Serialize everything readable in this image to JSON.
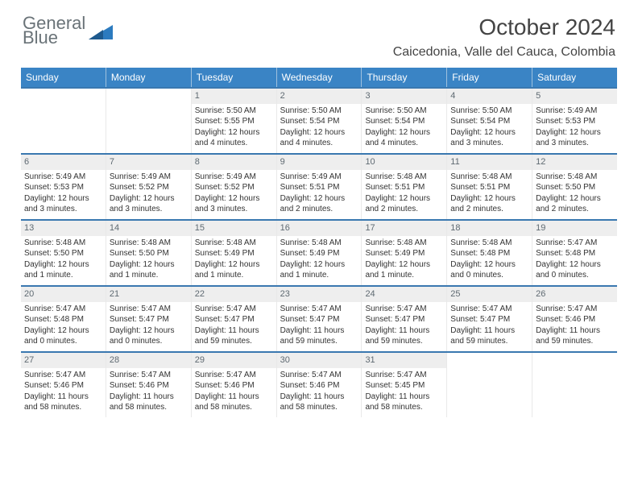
{
  "brand": {
    "line1": "General",
    "line2": "Blue"
  },
  "title": "October 2024",
  "location": "Caicedonia, Valle del Cauca, Colombia",
  "colors": {
    "header_bg": "#3a84c5",
    "week_border": "#3a78b0",
    "daynum_bg": "#eeeeee",
    "logo_gray": "#6a7378",
    "logo_blue": "#2c7bbf"
  },
  "weekdays": [
    "Sunday",
    "Monday",
    "Tuesday",
    "Wednesday",
    "Thursday",
    "Friday",
    "Saturday"
  ],
  "weeks": [
    [
      {
        "n": "",
        "sr": "",
        "ss": "",
        "dl": ""
      },
      {
        "n": "",
        "sr": "",
        "ss": "",
        "dl": ""
      },
      {
        "n": "1",
        "sr": "Sunrise: 5:50 AM",
        "ss": "Sunset: 5:55 PM",
        "dl": "Daylight: 12 hours and 4 minutes."
      },
      {
        "n": "2",
        "sr": "Sunrise: 5:50 AM",
        "ss": "Sunset: 5:54 PM",
        "dl": "Daylight: 12 hours and 4 minutes."
      },
      {
        "n": "3",
        "sr": "Sunrise: 5:50 AM",
        "ss": "Sunset: 5:54 PM",
        "dl": "Daylight: 12 hours and 4 minutes."
      },
      {
        "n": "4",
        "sr": "Sunrise: 5:50 AM",
        "ss": "Sunset: 5:54 PM",
        "dl": "Daylight: 12 hours and 3 minutes."
      },
      {
        "n": "5",
        "sr": "Sunrise: 5:49 AM",
        "ss": "Sunset: 5:53 PM",
        "dl": "Daylight: 12 hours and 3 minutes."
      }
    ],
    [
      {
        "n": "6",
        "sr": "Sunrise: 5:49 AM",
        "ss": "Sunset: 5:53 PM",
        "dl": "Daylight: 12 hours and 3 minutes."
      },
      {
        "n": "7",
        "sr": "Sunrise: 5:49 AM",
        "ss": "Sunset: 5:52 PM",
        "dl": "Daylight: 12 hours and 3 minutes."
      },
      {
        "n": "8",
        "sr": "Sunrise: 5:49 AM",
        "ss": "Sunset: 5:52 PM",
        "dl": "Daylight: 12 hours and 3 minutes."
      },
      {
        "n": "9",
        "sr": "Sunrise: 5:49 AM",
        "ss": "Sunset: 5:51 PM",
        "dl": "Daylight: 12 hours and 2 minutes."
      },
      {
        "n": "10",
        "sr": "Sunrise: 5:48 AM",
        "ss": "Sunset: 5:51 PM",
        "dl": "Daylight: 12 hours and 2 minutes."
      },
      {
        "n": "11",
        "sr": "Sunrise: 5:48 AM",
        "ss": "Sunset: 5:51 PM",
        "dl": "Daylight: 12 hours and 2 minutes."
      },
      {
        "n": "12",
        "sr": "Sunrise: 5:48 AM",
        "ss": "Sunset: 5:50 PM",
        "dl": "Daylight: 12 hours and 2 minutes."
      }
    ],
    [
      {
        "n": "13",
        "sr": "Sunrise: 5:48 AM",
        "ss": "Sunset: 5:50 PM",
        "dl": "Daylight: 12 hours and 1 minute."
      },
      {
        "n": "14",
        "sr": "Sunrise: 5:48 AM",
        "ss": "Sunset: 5:50 PM",
        "dl": "Daylight: 12 hours and 1 minute."
      },
      {
        "n": "15",
        "sr": "Sunrise: 5:48 AM",
        "ss": "Sunset: 5:49 PM",
        "dl": "Daylight: 12 hours and 1 minute."
      },
      {
        "n": "16",
        "sr": "Sunrise: 5:48 AM",
        "ss": "Sunset: 5:49 PM",
        "dl": "Daylight: 12 hours and 1 minute."
      },
      {
        "n": "17",
        "sr": "Sunrise: 5:48 AM",
        "ss": "Sunset: 5:49 PM",
        "dl": "Daylight: 12 hours and 1 minute."
      },
      {
        "n": "18",
        "sr": "Sunrise: 5:48 AM",
        "ss": "Sunset: 5:48 PM",
        "dl": "Daylight: 12 hours and 0 minutes."
      },
      {
        "n": "19",
        "sr": "Sunrise: 5:47 AM",
        "ss": "Sunset: 5:48 PM",
        "dl": "Daylight: 12 hours and 0 minutes."
      }
    ],
    [
      {
        "n": "20",
        "sr": "Sunrise: 5:47 AM",
        "ss": "Sunset: 5:48 PM",
        "dl": "Daylight: 12 hours and 0 minutes."
      },
      {
        "n": "21",
        "sr": "Sunrise: 5:47 AM",
        "ss": "Sunset: 5:47 PM",
        "dl": "Daylight: 12 hours and 0 minutes."
      },
      {
        "n": "22",
        "sr": "Sunrise: 5:47 AM",
        "ss": "Sunset: 5:47 PM",
        "dl": "Daylight: 11 hours and 59 minutes."
      },
      {
        "n": "23",
        "sr": "Sunrise: 5:47 AM",
        "ss": "Sunset: 5:47 PM",
        "dl": "Daylight: 11 hours and 59 minutes."
      },
      {
        "n": "24",
        "sr": "Sunrise: 5:47 AM",
        "ss": "Sunset: 5:47 PM",
        "dl": "Daylight: 11 hours and 59 minutes."
      },
      {
        "n": "25",
        "sr": "Sunrise: 5:47 AM",
        "ss": "Sunset: 5:47 PM",
        "dl": "Daylight: 11 hours and 59 minutes."
      },
      {
        "n": "26",
        "sr": "Sunrise: 5:47 AM",
        "ss": "Sunset: 5:46 PM",
        "dl": "Daylight: 11 hours and 59 minutes."
      }
    ],
    [
      {
        "n": "27",
        "sr": "Sunrise: 5:47 AM",
        "ss": "Sunset: 5:46 PM",
        "dl": "Daylight: 11 hours and 58 minutes."
      },
      {
        "n": "28",
        "sr": "Sunrise: 5:47 AM",
        "ss": "Sunset: 5:46 PM",
        "dl": "Daylight: 11 hours and 58 minutes."
      },
      {
        "n": "29",
        "sr": "Sunrise: 5:47 AM",
        "ss": "Sunset: 5:46 PM",
        "dl": "Daylight: 11 hours and 58 minutes."
      },
      {
        "n": "30",
        "sr": "Sunrise: 5:47 AM",
        "ss": "Sunset: 5:46 PM",
        "dl": "Daylight: 11 hours and 58 minutes."
      },
      {
        "n": "31",
        "sr": "Sunrise: 5:47 AM",
        "ss": "Sunset: 5:45 PM",
        "dl": "Daylight: 11 hours and 58 minutes."
      },
      {
        "n": "",
        "sr": "",
        "ss": "",
        "dl": ""
      },
      {
        "n": "",
        "sr": "",
        "ss": "",
        "dl": ""
      }
    ]
  ]
}
